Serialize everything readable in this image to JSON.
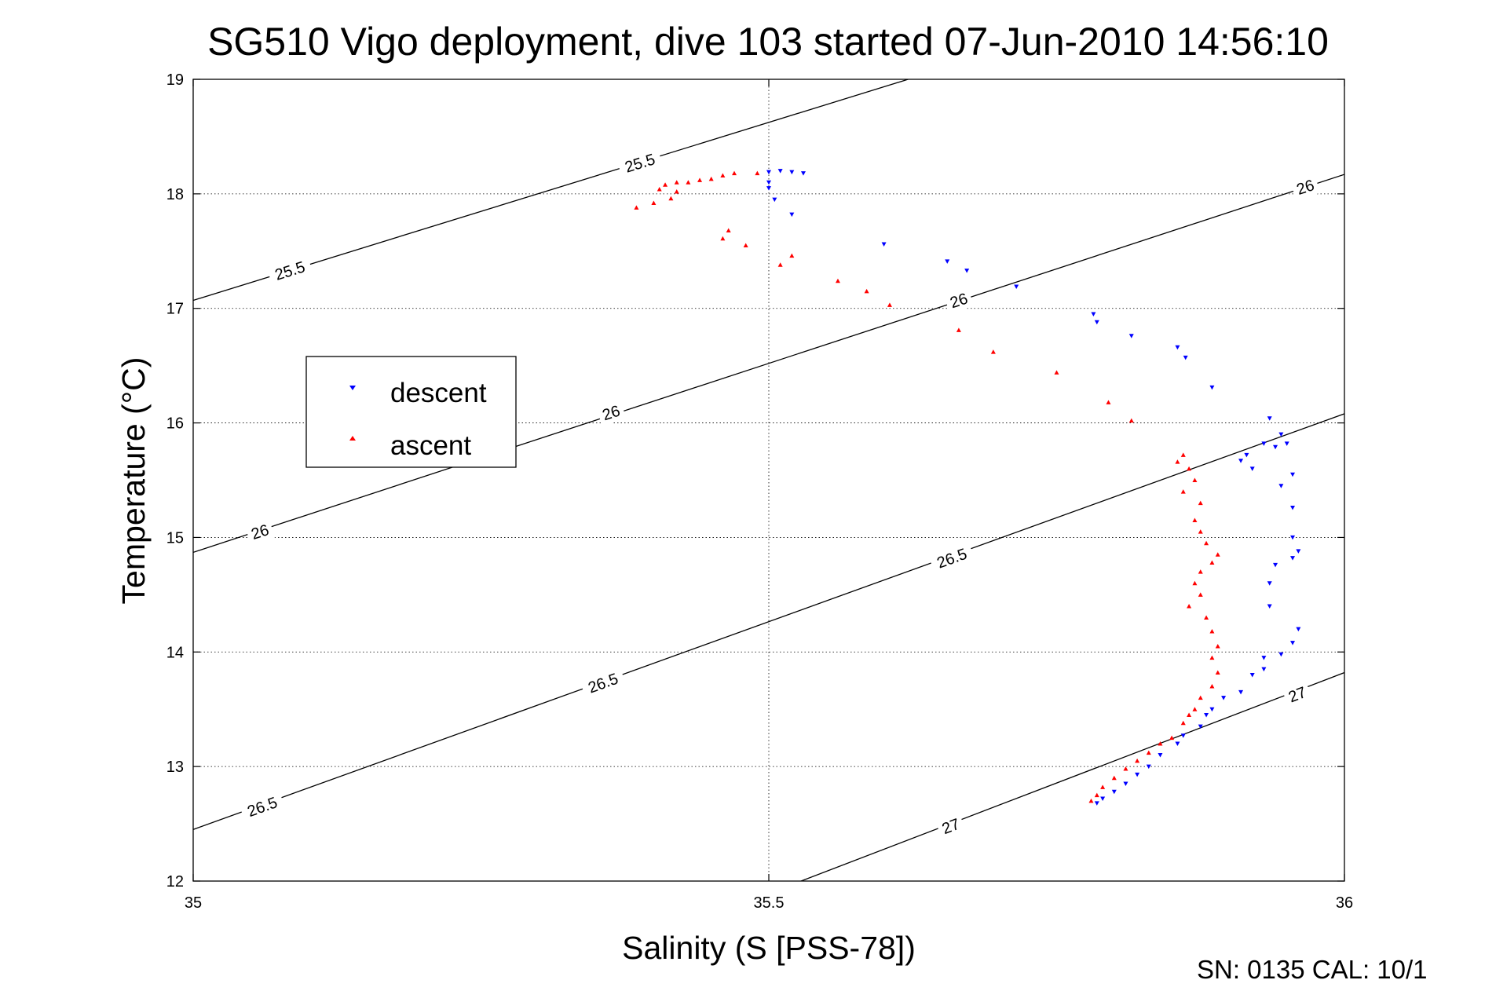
{
  "chart_data": {
    "type": "scatter",
    "title": "SG510 Vigo deployment, dive 103 started 07-Jun-2010 14:56:10",
    "xlabel": "Salinity (S [PSS-78])",
    "ylabel": "Temperature (°C)",
    "xlim": [
      35,
      36
    ],
    "ylim": [
      12,
      19
    ],
    "x_ticks": [
      "35",
      "35.5",
      "36"
    ],
    "y_ticks": [
      "12",
      "13",
      "14",
      "15",
      "16",
      "17",
      "18",
      "19"
    ],
    "grid": true,
    "legend_position": "left",
    "footer": "SN: 0135  CAL: 10/1",
    "contours": [
      {
        "label": "25.5",
        "points": [
          [
            35,
            17.07
          ],
          [
            35.621,
            19.0
          ]
        ],
        "label_positions": [
          [
            35.084,
            17.33
          ],
          [
            35.388,
            18.27
          ]
        ]
      },
      {
        "label": "26",
        "points": [
          [
            35,
            14.87
          ],
          [
            36,
            18.17
          ]
        ],
        "label_positions": [
          [
            35.058,
            15.05
          ],
          [
            35.363,
            16.09
          ],
          [
            35.665,
            17.07
          ],
          [
            35.966,
            18.06
          ]
        ]
      },
      {
        "label": "26.5",
        "points": [
          [
            35,
            12.45
          ],
          [
            36,
            16.08
          ]
        ],
        "label_positions": [
          [
            35.06,
            12.65
          ],
          [
            35.356,
            13.73
          ],
          [
            35.659,
            14.82
          ]
        ]
      },
      {
        "label": "27",
        "points": [
          [
            35.528,
            12.0
          ],
          [
            36,
            13.82
          ]
        ],
        "label_positions": [
          [
            35.658,
            12.48
          ],
          [
            35.959,
            13.63
          ]
        ]
      }
    ],
    "series": [
      {
        "name": "descent",
        "color": "#0000ff",
        "marker": "triangle-down",
        "points": [
          [
            35.5,
            18.19
          ],
          [
            35.51,
            18.2
          ],
          [
            35.52,
            18.19
          ],
          [
            35.53,
            18.18
          ],
          [
            35.5,
            18.1
          ],
          [
            35.5,
            18.05
          ],
          [
            35.505,
            17.95
          ],
          [
            35.52,
            17.82
          ],
          [
            35.6,
            17.56
          ],
          [
            35.655,
            17.41
          ],
          [
            35.672,
            17.33
          ],
          [
            35.715,
            17.19
          ],
          [
            35.782,
            16.95
          ],
          [
            35.785,
            16.88
          ],
          [
            35.815,
            16.76
          ],
          [
            35.855,
            16.66
          ],
          [
            35.862,
            16.57
          ],
          [
            35.885,
            16.31
          ],
          [
            35.935,
            16.04
          ],
          [
            35.945,
            15.9
          ],
          [
            35.93,
            15.82
          ],
          [
            35.95,
            15.82
          ],
          [
            35.94,
            15.79
          ],
          [
            35.915,
            15.72
          ],
          [
            35.91,
            15.67
          ],
          [
            35.92,
            15.6
          ],
          [
            35.955,
            15.55
          ],
          [
            35.945,
            15.45
          ],
          [
            35.955,
            15.26
          ],
          [
            35.955,
            15.0
          ],
          [
            35.96,
            14.88
          ],
          [
            35.955,
            14.82
          ],
          [
            35.94,
            14.76
          ],
          [
            35.935,
            14.6
          ],
          [
            35.935,
            14.4
          ],
          [
            35.96,
            14.2
          ],
          [
            35.955,
            14.08
          ],
          [
            35.93,
            13.95
          ],
          [
            35.945,
            13.98
          ],
          [
            35.92,
            13.8
          ],
          [
            35.93,
            13.85
          ],
          [
            35.91,
            13.65
          ],
          [
            35.895,
            13.6
          ],
          [
            35.885,
            13.5
          ],
          [
            35.88,
            13.45
          ],
          [
            35.875,
            13.35
          ],
          [
            35.86,
            13.27
          ],
          [
            35.855,
            13.2
          ],
          [
            35.84,
            13.1
          ],
          [
            35.83,
            13.0
          ],
          [
            35.82,
            12.93
          ],
          [
            35.81,
            12.85
          ],
          [
            35.8,
            12.78
          ],
          [
            35.79,
            12.72
          ],
          [
            35.785,
            12.68
          ]
        ]
      },
      {
        "name": "ascent",
        "color": "#ff0000",
        "marker": "triangle-up",
        "points": [
          [
            35.49,
            18.18
          ],
          [
            35.47,
            18.18
          ],
          [
            35.46,
            18.16
          ],
          [
            35.45,
            18.13
          ],
          [
            35.44,
            18.12
          ],
          [
            35.43,
            18.1
          ],
          [
            35.42,
            18.1
          ],
          [
            35.41,
            18.08
          ],
          [
            35.405,
            18.04
          ],
          [
            35.42,
            18.02
          ],
          [
            35.415,
            17.96
          ],
          [
            35.4,
            17.92
          ],
          [
            35.385,
            17.88
          ],
          [
            35.465,
            17.68
          ],
          [
            35.46,
            17.61
          ],
          [
            35.48,
            17.55
          ],
          [
            35.52,
            17.46
          ],
          [
            35.51,
            17.38
          ],
          [
            35.56,
            17.24
          ],
          [
            35.585,
            17.15
          ],
          [
            35.605,
            17.03
          ],
          [
            35.665,
            16.81
          ],
          [
            35.695,
            16.62
          ],
          [
            35.75,
            16.44
          ],
          [
            35.795,
            16.18
          ],
          [
            35.815,
            16.02
          ],
          [
            35.86,
            15.72
          ],
          [
            35.855,
            15.66
          ],
          [
            35.865,
            15.6
          ],
          [
            35.87,
            15.5
          ],
          [
            35.86,
            15.4
          ],
          [
            35.875,
            15.3
          ],
          [
            35.87,
            15.15
          ],
          [
            35.875,
            15.05
          ],
          [
            35.88,
            14.95
          ],
          [
            35.89,
            14.85
          ],
          [
            35.885,
            14.78
          ],
          [
            35.875,
            14.7
          ],
          [
            35.87,
            14.6
          ],
          [
            35.875,
            14.5
          ],
          [
            35.865,
            14.4
          ],
          [
            35.88,
            14.3
          ],
          [
            35.885,
            14.18
          ],
          [
            35.89,
            14.05
          ],
          [
            35.885,
            13.95
          ],
          [
            35.89,
            13.82
          ],
          [
            35.885,
            13.7
          ],
          [
            35.875,
            13.6
          ],
          [
            35.87,
            13.5
          ],
          [
            35.865,
            13.45
          ],
          [
            35.86,
            13.38
          ],
          [
            35.85,
            13.25
          ],
          [
            35.84,
            13.2
          ],
          [
            35.83,
            13.12
          ],
          [
            35.82,
            13.05
          ],
          [
            35.81,
            12.98
          ],
          [
            35.8,
            12.9
          ],
          [
            35.79,
            12.82
          ],
          [
            35.785,
            12.75
          ],
          [
            35.78,
            12.7
          ]
        ]
      }
    ]
  }
}
